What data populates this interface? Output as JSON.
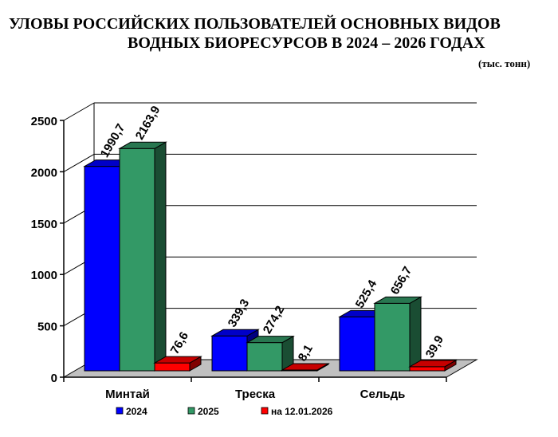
{
  "title": {
    "line1": "УЛОВЫ РОССИЙСКИХ ПОЛЬЗОВАТЕЛЕЙ ОСНОВНЫХ ВИДОВ",
    "line2": "ВОДНЫХ БИОРЕСУРСОВ В  2024 – 2026 ГОДАХ",
    "unit": "(тыс. тонн)"
  },
  "chart_data": {
    "type": "bar",
    "categories": [
      "Минтай",
      "Треска",
      "Сельдь"
    ],
    "series": [
      {
        "name": "2024",
        "values": [
          1990.7,
          339.3,
          525.4
        ],
        "labels": [
          "1990,7",
          "339,3",
          "525,4"
        ],
        "color": "#0000ff"
      },
      {
        "name": "2025",
        "values": [
          2163.9,
          274.2,
          656.7
        ],
        "labels": [
          "2163,9",
          "274,2",
          "656,7"
        ],
        "color": "#339966"
      },
      {
        "name": "на 12.01.2026",
        "values": [
          76.6,
          8.1,
          39.9
        ],
        "labels": [
          "76,6",
          "8,1",
          "39,9"
        ],
        "color": "#ff0000"
      }
    ],
    "yticks": [
      "0",
      "500",
      "1000",
      "1500",
      "2000",
      "2500"
    ],
    "ylim": [
      0,
      2500
    ],
    "grid": true,
    "legend": "bottom",
    "three_d": true
  }
}
